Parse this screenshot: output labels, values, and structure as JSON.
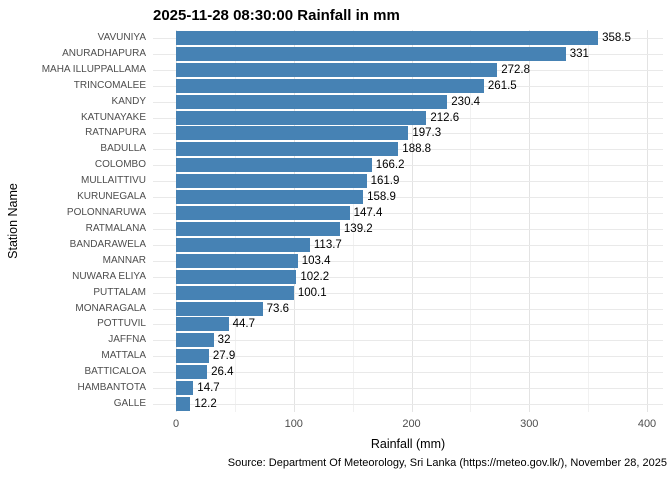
{
  "chart_data": {
    "type": "bar",
    "orientation": "horizontal",
    "title": "2025-11-28 08:30:00 Rainfall in mm",
    "xlabel": "Rainfall (mm)",
    "ylabel": "Station Name",
    "caption": "Source: Department Of Meteorology, Sri Lanka (https://meteo.gov.lk/), November 28, 2025",
    "categories": [
      "VAVUNIYA",
      "ANURADHAPURA",
      "MAHA ILLUPPALLAMA",
      "TRINCOMALEE",
      "KANDY",
      "KATUNAYAKE",
      "RATNAPURA",
      "BADULLA",
      "COLOMBO",
      "MULLAITTIVU",
      "KURUNEGALA",
      "POLONNARUWA",
      "RATMALANA",
      "BANDARAWELA",
      "MANNAR",
      "NUWARA ELIYA",
      "PUTTALAM",
      "MONARAGALA",
      "POTTUVIL",
      "JAFFNA",
      "MATTALA",
      "BATTICALOA",
      "HAMBANTOTA",
      "GALLE"
    ],
    "values": [
      358.5,
      331,
      272.8,
      261.5,
      230.4,
      212.6,
      197.3,
      188.8,
      166.2,
      161.9,
      158.9,
      147.4,
      139.2,
      113.7,
      103.4,
      102.2,
      100.1,
      73.6,
      44.7,
      32,
      27.9,
      26.4,
      14.7,
      12.2
    ],
    "x_major_ticks": [
      0,
      100,
      200,
      300,
      400
    ],
    "x_minor_ticks": [
      50,
      150,
      250,
      350
    ],
    "xlim": [
      0,
      400
    ],
    "grid": true,
    "legend": "none",
    "colors": {
      "bar": "#4682B4",
      "grid_major": "#E3E3E3",
      "grid_minor": "#F1F1F1",
      "grid_row": "#E9E9E9",
      "axis_text": "#4D4D4D",
      "text": "#000000",
      "background": "#FFFFFF"
    }
  }
}
